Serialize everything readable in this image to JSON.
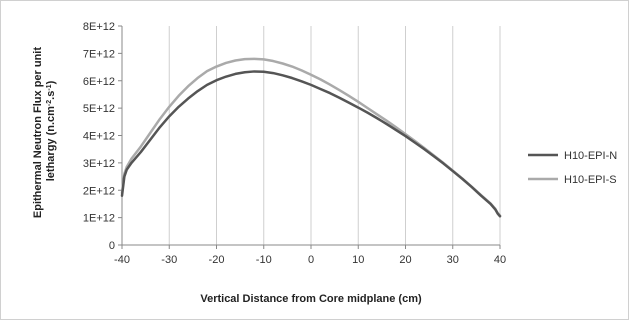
{
  "chart_data": {
    "type": "line",
    "title": "",
    "xlabel": "Vertical Distance from Core midplane (cm)",
    "ylabel_line1": "Epithermal Neutron Flux per unit",
    "ylabel_line2_prefix": "lethargy (n.cm",
    "ylabel_line2_sup1": "-2",
    "ylabel_line2_mid": ".s",
    "ylabel_line2_sup2": "-1",
    "ylabel_line2_suffix": ")",
    "xlim": [
      -40,
      40
    ],
    "ylim": [
      0,
      8000000000000.0
    ],
    "x_ticks": [
      -40,
      -30,
      -20,
      -10,
      0,
      10,
      20,
      30,
      40
    ],
    "x_tick_labels": [
      "-40",
      "-30",
      "-20",
      "-10",
      "0",
      "10",
      "20",
      "30",
      "40"
    ],
    "y_ticks": [
      0,
      1000000000000.0,
      2000000000000.0,
      3000000000000.0,
      4000000000000.0,
      5000000000000.0,
      6000000000000.0,
      7000000000000.0,
      8000000000000.0
    ],
    "y_tick_labels": [
      "0",
      "1E+12",
      "2E+12",
      "3E+12",
      "4E+12",
      "5E+12",
      "6E+12",
      "7E+12",
      "8E+12"
    ],
    "grid": {
      "vertical": true,
      "horizontal": false
    },
    "legend_position": "right",
    "series": [
      {
        "name": "H10-EPI-N",
        "color": "#555555",
        "x": [
          -40,
          -39.5,
          -39,
          -38,
          -36,
          -34,
          -32,
          -30,
          -28,
          -26,
          -24,
          -22,
          -20,
          -18,
          -16,
          -14,
          -12,
          -10,
          -8,
          -6,
          -4,
          -2,
          0,
          2,
          4,
          6,
          8,
          10,
          12,
          14,
          16,
          18,
          20,
          22,
          24,
          26,
          28,
          30,
          32,
          34,
          36,
          37,
          38,
          39,
          39.5,
          40
        ],
        "y": [
          1800000000000.0,
          2500000000000.0,
          2750000000000.0,
          3000000000000.0,
          3400000000000.0,
          3850000000000.0,
          4300000000000.0,
          4700000000000.0,
          5050000000000.0,
          5350000000000.0,
          5620000000000.0,
          5850000000000.0,
          6020000000000.0,
          6150000000000.0,
          6250000000000.0,
          6310000000000.0,
          6340000000000.0,
          6330000000000.0,
          6280000000000.0,
          6200000000000.0,
          6100000000000.0,
          5980000000000.0,
          5850000000000.0,
          5700000000000.0,
          5550000000000.0,
          5380000000000.0,
          5200000000000.0,
          5020000000000.0,
          4830000000000.0,
          4630000000000.0,
          4420000000000.0,
          4200000000000.0,
          3980000000000.0,
          3740000000000.0,
          3500000000000.0,
          3240000000000.0,
          2980000000000.0,
          2700000000000.0,
          2420000000000.0,
          2120000000000.0,
          1800000000000.0,
          1650000000000.0,
          1500000000000.0,
          1300000000000.0,
          1150000000000.0,
          1050000000000.0
        ]
      },
      {
        "name": "H10-EPI-S",
        "color": "#aaaaaa",
        "x": [
          -40,
          -39.5,
          -39,
          -38,
          -36,
          -34,
          -32,
          -30,
          -28,
          -26,
          -24,
          -22,
          -20,
          -18,
          -16,
          -14,
          -12,
          -10,
          -8,
          -6,
          -4,
          -2,
          0,
          2,
          4,
          6,
          8,
          10,
          12,
          14,
          16,
          18,
          20,
          22,
          24,
          26,
          28,
          30,
          32,
          34,
          36,
          37,
          38,
          39,
          39.5,
          40
        ],
        "y": [
          1900000000000.0,
          2600000000000.0,
          2850000000000.0,
          3150000000000.0,
          3600000000000.0,
          4100000000000.0,
          4600000000000.0,
          5050000000000.0,
          5450000000000.0,
          5800000000000.0,
          6100000000000.0,
          6350000000000.0,
          6520000000000.0,
          6650000000000.0,
          6740000000000.0,
          6790000000000.0,
          6800000000000.0,
          6780000000000.0,
          6720000000000.0,
          6630000000000.0,
          6520000000000.0,
          6380000000000.0,
          6220000000000.0,
          6050000000000.0,
          5860000000000.0,
          5660000000000.0,
          5450000000000.0,
          5230000000000.0,
          5000000000000.0,
          4770000000000.0,
          4540000000000.0,
          4300000000000.0,
          4050000000000.0,
          3800000000000.0,
          3540000000000.0,
          3270000000000.0,
          3000000000000.0,
          2720000000000.0,
          2430000000000.0,
          2130000000000.0,
          1820000000000.0,
          1670000000000.0,
          1520000000000.0,
          1320000000000.0,
          1170000000000.0,
          1080000000000.0
        ]
      }
    ]
  }
}
